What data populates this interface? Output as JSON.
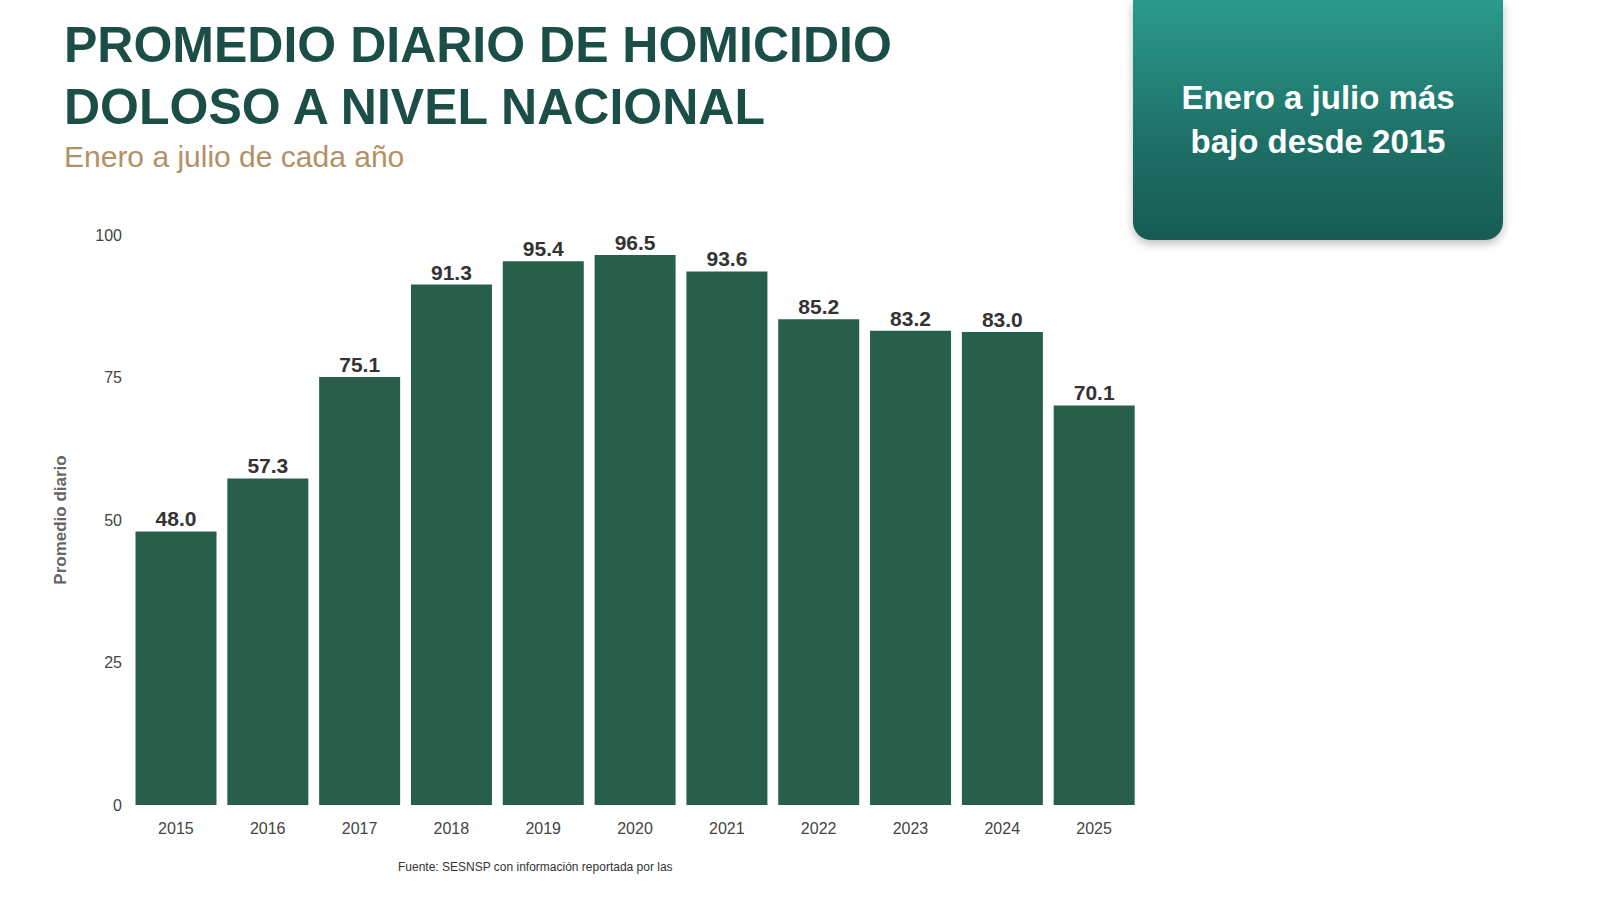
{
  "chart_data": {
    "type": "bar",
    "title": "PROMEDIO DIARIO DE HOMICIDIO DOLOSO A NIVEL NACIONAL",
    "subtitle": "Enero a julio de cada año",
    "annotation": "Enero a julio más bajo desde 2015",
    "source": "Fuente: SESNSP con información reportada por las",
    "y_label": "Promedio diario",
    "categories": [
      "2015",
      "2016",
      "2017",
      "2018",
      "2019",
      "2020",
      "2021",
      "2022",
      "2023",
      "2024",
      "2025"
    ],
    "values": [
      48.0,
      57.3,
      75.1,
      91.3,
      95.4,
      96.5,
      93.6,
      85.2,
      83.2,
      83.0,
      70.1
    ],
    "value_labels": [
      "48.0",
      "57.3",
      "75.1",
      "91.3",
      "95.4",
      "96.5",
      "93.6",
      "85.2",
      "83.2",
      "83.0",
      "70.1"
    ],
    "color": "#285f4b",
    "ylim": [
      0,
      100
    ],
    "yticks": [
      0,
      25,
      50,
      75,
      100
    ],
    "grid": false,
    "data_labels": true
  }
}
